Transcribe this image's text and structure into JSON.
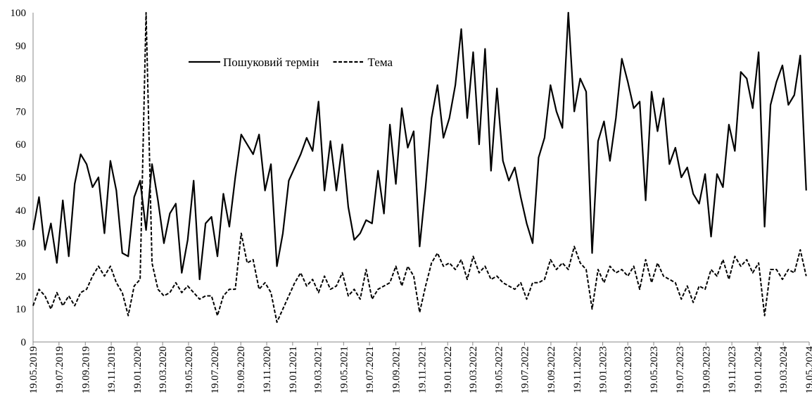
{
  "chart_data": {
    "type": "line",
    "x": [
      "19.05.2019",
      "02.06.2019",
      "16.06.2019",
      "30.06.2019",
      "14.07.2019",
      "28.07.2019",
      "11.08.2019",
      "25.08.2019",
      "08.09.2019",
      "22.09.2019",
      "06.10.2019",
      "20.10.2019",
      "03.11.2019",
      "17.11.2019",
      "01.12.2019",
      "15.12.2019",
      "29.12.2019",
      "12.01.2020",
      "26.01.2020",
      "09.02.2020",
      "23.02.2020",
      "08.03.2020",
      "22.03.2020",
      "05.04.2020",
      "19.04.2020",
      "03.05.2020",
      "17.05.2020",
      "31.05.2020",
      "14.06.2020",
      "28.06.2020",
      "12.07.2020",
      "26.07.2020",
      "09.08.2020",
      "23.08.2020",
      "06.09.2020",
      "20.09.2020",
      "04.10.2020",
      "18.10.2020",
      "01.11.2020",
      "15.11.2020",
      "29.11.2020",
      "13.12.2020",
      "27.12.2020",
      "10.01.2021",
      "24.01.2021",
      "07.02.2021",
      "21.02.2021",
      "07.03.2021",
      "21.03.2021",
      "04.04.2021",
      "18.04.2021",
      "02.05.2021",
      "16.05.2021",
      "30.05.2021",
      "13.06.2021",
      "27.06.2021",
      "11.07.2021",
      "25.07.2021",
      "08.08.2021",
      "22.08.2021",
      "05.09.2021",
      "19.09.2021",
      "03.10.2021",
      "17.10.2021",
      "31.10.2021",
      "14.11.2021",
      "28.11.2021",
      "12.12.2021",
      "26.12.2021",
      "09.01.2022",
      "23.01.2022",
      "06.02.2022",
      "20.02.2022",
      "06.03.2022",
      "20.03.2022",
      "03.04.2022",
      "17.04.2022",
      "01.05.2022",
      "15.05.2022",
      "29.05.2022",
      "12.06.2022",
      "26.06.2022",
      "10.07.2022",
      "24.07.2022",
      "07.08.2022",
      "21.08.2022",
      "04.09.2022",
      "18.09.2022",
      "02.10.2022",
      "16.10.2022",
      "30.10.2022",
      "13.11.2022",
      "27.11.2022",
      "11.12.2022",
      "25.12.2022",
      "08.01.2023",
      "22.01.2023",
      "05.02.2023",
      "19.02.2023",
      "05.03.2023",
      "19.03.2023",
      "02.04.2023",
      "16.04.2023",
      "30.04.2023",
      "14.05.2023",
      "28.05.2023",
      "11.06.2023",
      "25.06.2023",
      "09.07.2023",
      "23.07.2023",
      "06.08.2023",
      "20.08.2023",
      "03.09.2023",
      "17.09.2023",
      "01.10.2023",
      "15.10.2023",
      "29.10.2023",
      "12.11.2023",
      "26.11.2023",
      "10.12.2023",
      "24.12.2023",
      "07.01.2024",
      "21.01.2024",
      "04.02.2024",
      "18.02.2024",
      "03.03.2024",
      "17.03.2024",
      "31.03.2024",
      "14.04.2024",
      "28.04.2024",
      "12.05.2024"
    ],
    "series": [
      {
        "name": "Пошуковий термін",
        "color": "#000000",
        "style": "solid",
        "values": [
          34,
          44,
          28,
          36,
          24,
          43,
          26,
          48,
          57,
          54,
          47,
          50,
          33,
          55,
          46,
          27,
          26,
          44,
          49,
          34,
          54,
          43,
          30,
          39,
          42,
          21,
          31,
          49,
          19,
          36,
          38,
          26,
          45,
          35,
          50,
          63,
          60,
          57,
          63,
          46,
          54,
          23,
          33,
          49,
          53,
          57,
          62,
          58,
          73,
          46,
          61,
          46,
          60,
          41,
          31,
          33,
          37,
          36,
          52,
          39,
          66,
          48,
          71,
          59,
          64,
          29,
          47,
          68,
          78,
          62,
          68,
          78,
          95,
          68,
          88,
          60,
          89,
          52,
          77,
          55,
          49,
          53,
          44,
          36,
          30,
          56,
          62,
          78,
          70,
          65,
          100,
          70,
          80,
          76,
          27,
          61,
          67,
          55,
          68,
          86,
          79,
          71,
          73,
          43,
          76,
          64,
          74,
          54,
          59,
          50,
          53,
          45,
          42,
          51,
          32,
          51,
          47,
          66,
          58,
          82,
          80,
          71,
          88,
          35,
          72,
          79,
          84,
          72,
          75,
          87,
          46
        ]
      },
      {
        "name": "Тема",
        "color": "#000000",
        "style": "dashed",
        "values": [
          11,
          16,
          14,
          10,
          15,
          11,
          14,
          11,
          15,
          16,
          20,
          23,
          20,
          23,
          18,
          15,
          8,
          17,
          19,
          100,
          24,
          16,
          14,
          15,
          18,
          15,
          17,
          15,
          13,
          14,
          14,
          8,
          14,
          16,
          16,
          33,
          24,
          25,
          16,
          18,
          15,
          6,
          10,
          14,
          18,
          21,
          17,
          19,
          15,
          20,
          16,
          17,
          21,
          14,
          16,
          13,
          22,
          13,
          16,
          17,
          18,
          23,
          17,
          23,
          20,
          9,
          17,
          24,
          27,
          23,
          24,
          22,
          25,
          19,
          26,
          21,
          23,
          19,
          20,
          18,
          17,
          16,
          18,
          13,
          18,
          18,
          19,
          25,
          22,
          24,
          22,
          29,
          24,
          22,
          10,
          22,
          18,
          23,
          21,
          22,
          20,
          23,
          16,
          25,
          18,
          24,
          20,
          19,
          18,
          13,
          17,
          12,
          17,
          16,
          22,
          20,
          25,
          19,
          26,
          23,
          25,
          21,
          24,
          8,
          22,
          22,
          19,
          22,
          21,
          28,
          20
        ]
      }
    ],
    "xlim": [
      "19.05.2019",
      "19.05.2024"
    ],
    "xticks": [
      "19.05.2019",
      "19.07.2019",
      "19.09.2019",
      "19.11.2019",
      "19.01.2020",
      "19.03.2020",
      "19.05.2020",
      "19.07.2020",
      "19.09.2020",
      "19.11.2020",
      "19.01.2021",
      "19.03.2021",
      "19.05.2021",
      "19.07.2021",
      "19.09.2021",
      "19.11.2021",
      "19.01.2022",
      "19.03.2022",
      "19.05.2022",
      "19.07.2022",
      "19.09.2022",
      "19.11.2022",
      "19.01.2023",
      "19.03.2023",
      "19.05.2023",
      "19.07.2023",
      "19.09.2023",
      "19.11.2023",
      "19.01.2024",
      "19.03.2024",
      "19.05.2024"
    ],
    "ylim": [
      0,
      100
    ],
    "yticks": [
      0,
      10,
      20,
      30,
      40,
      50,
      60,
      70,
      80,
      90,
      100
    ],
    "grid": false,
    "legend": "top"
  }
}
